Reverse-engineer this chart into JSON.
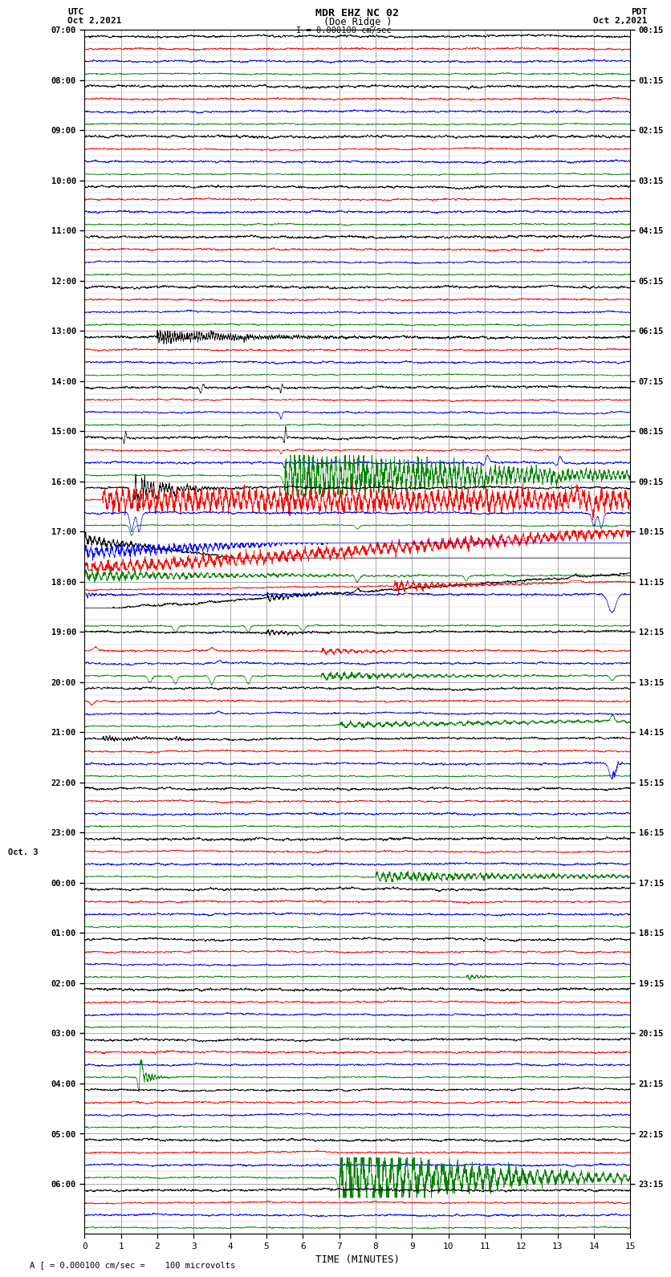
{
  "title_line1": "MDR EHZ NC 02",
  "title_line2": "(Doe Ridge )",
  "scale_text": "I = 0.000100 cm/sec",
  "left_date": "Oct 2,2021",
  "right_date": "Oct 2,2021",
  "utc_label": "UTC",
  "pdt_label": "PDT",
  "bottom_label": "A [ = 0.000100 cm/sec =    100 microvolts",
  "xlabel": "TIME (MINUTES)",
  "left_times": [
    "07:00",
    "08:00",
    "09:00",
    "10:00",
    "11:00",
    "12:00",
    "13:00",
    "14:00",
    "15:00",
    "16:00",
    "17:00",
    "18:00",
    "19:00",
    "20:00",
    "21:00",
    "22:00",
    "23:00",
    "Oct. 3",
    "00:00",
    "01:00",
    "02:00",
    "03:00",
    "04:00",
    "05:00",
    "06:00"
  ],
  "right_times": [
    "00:15",
    "01:15",
    "02:15",
    "03:15",
    "04:15",
    "05:15",
    "06:15",
    "07:15",
    "08:15",
    "09:15",
    "10:15",
    "11:15",
    "12:15",
    "13:15",
    "14:15",
    "15:15",
    "16:15",
    "17:15",
    "18:15",
    "19:15",
    "20:15",
    "21:15",
    "22:15",
    "23:15"
  ],
  "n_rows": 24,
  "n_traces": 4,
  "trace_colors": [
    "black",
    "red",
    "blue",
    "green"
  ],
  "bg_color": "white",
  "grid_color": "#888888",
  "xmin": 0,
  "xmax": 15,
  "xticks": [
    0,
    1,
    2,
    3,
    4,
    5,
    6,
    7,
    8,
    9,
    10,
    11,
    12,
    13,
    14,
    15
  ],
  "seed": 42
}
